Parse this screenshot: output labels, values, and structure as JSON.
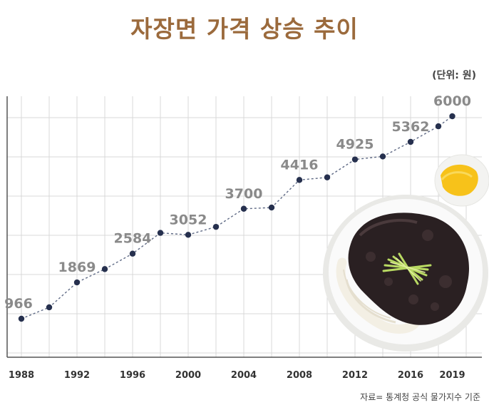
{
  "title": "자장면 가격 상승 추이",
  "unit_label": "(단위: 원)",
  "source": "자료= 통계청 공식 물가지수 기준",
  "colors": {
    "title": "#9b6a3c",
    "point": "#26304e",
    "line": "#5f6a85",
    "grid": "#d9d9d9",
    "axis": "#555555",
    "label": "#8a8a8a"
  },
  "chart_data": {
    "type": "line",
    "title": "자장면 가격 상승 추이",
    "ylabel": "(단위: 원)",
    "xlabel": "",
    "grid": true,
    "x_ticks": [
      "1988",
      "1992",
      "1996",
      "2000",
      "2004",
      "2008",
      "2012",
      "2016",
      "2019"
    ],
    "points": [
      {
        "year": 1988,
        "value": 966,
        "label": "966"
      },
      {
        "year": 1990,
        "value": 1250
      },
      {
        "year": 1992,
        "value": 1869,
        "label": "1869"
      },
      {
        "year": 1994,
        "value": 2200
      },
      {
        "year": 1996,
        "value": 2584,
        "label": "2584"
      },
      {
        "year": 1998,
        "value": 3100
      },
      {
        "year": 2000,
        "value": 3052,
        "label": "3052"
      },
      {
        "year": 2002,
        "value": 3250
      },
      {
        "year": 2004,
        "value": 3700,
        "label": "3700"
      },
      {
        "year": 2006,
        "value": 3730
      },
      {
        "year": 2008,
        "value": 4416,
        "label": "4416"
      },
      {
        "year": 2010,
        "value": 4480
      },
      {
        "year": 2012,
        "value": 4925,
        "label": "4925"
      },
      {
        "year": 2014,
        "value": 5000
      },
      {
        "year": 2016,
        "value": 5362,
        "label": "5362"
      },
      {
        "year": 2018,
        "value": 5750
      },
      {
        "year": 2019,
        "value": 6000,
        "label": "6000"
      }
    ],
    "image": "jajangmyeon-bowl"
  }
}
